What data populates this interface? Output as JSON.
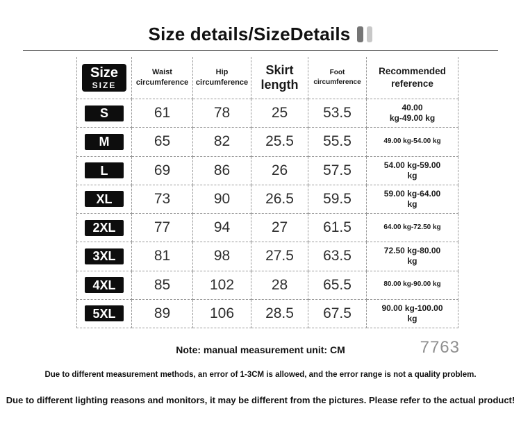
{
  "colors": {
    "size_box_bg": "#0d0d0d",
    "size_box_text": "#ffffff",
    "dashed_border": "#9a9a9a",
    "title_rule": "#4a4a4a",
    "code_gray": "#8f8f8f",
    "icon_bar_dark": "#757575",
    "icon_bar_light": "#c8c8c8"
  },
  "title": {
    "text": "Size details/SizeDetails",
    "icon": "pause-bars-icon"
  },
  "table": {
    "header": {
      "size_top": "Size",
      "size_bottom": "SIZE",
      "columns": [
        {
          "label": "Waist circumference"
        },
        {
          "label": "Hip circumference"
        },
        {
          "label": "Skirt length"
        },
        {
          "label": "Foot circumference"
        },
        {
          "label": "Recommended reference"
        }
      ]
    },
    "rows": [
      {
        "size": "S",
        "waist": "61",
        "hip": "78",
        "skirt": "25",
        "foot": "53.5",
        "rec1": "40.00",
        "rec2": "kg-49.00 kg"
      },
      {
        "size": "M",
        "waist": "65",
        "hip": "82",
        "skirt": "25.5",
        "foot": "55.5",
        "rec1": "49.00 kg-54.00 kg",
        "rec2": ""
      },
      {
        "size": "L",
        "waist": "69",
        "hip": "86",
        "skirt": "26",
        "foot": "57.5",
        "rec1": "54.00 kg-59.00",
        "rec2": "kg"
      },
      {
        "size": "XL",
        "waist": "73",
        "hip": "90",
        "skirt": "26.5",
        "foot": "59.5",
        "rec1": "59.00 kg-64.00",
        "rec2": "kg"
      },
      {
        "size": "2XL",
        "waist": "77",
        "hip": "94",
        "skirt": "27",
        "foot": "61.5",
        "rec1": "64.00 kg-72.50 kg",
        "rec2": ""
      },
      {
        "size": "3XL",
        "waist": "81",
        "hip": "98",
        "skirt": "27.5",
        "foot": "63.5",
        "rec1": "72.50 kg-80.00",
        "rec2": "kg"
      },
      {
        "size": "4XL",
        "waist": "85",
        "hip": "102",
        "skirt": "28",
        "foot": "65.5",
        "rec1": "80.00 kg-90.00 kg",
        "rec2": ""
      },
      {
        "size": "5XL",
        "waist": "89",
        "hip": "106",
        "skirt": "28.5",
        "foot": "67.5",
        "rec1": "90.00 kg-100.00",
        "rec2": "kg"
      }
    ]
  },
  "footer": {
    "note": "Note: manual measurement unit: CM",
    "code": "7763",
    "disclaimer1": "Due to different measurement methods, an error of 1-3CM is allowed, and the error range is not a quality problem.",
    "disclaimer2": "Due to different lighting reasons and monitors, it may be different from the pictures. Please refer to the actual product!"
  }
}
